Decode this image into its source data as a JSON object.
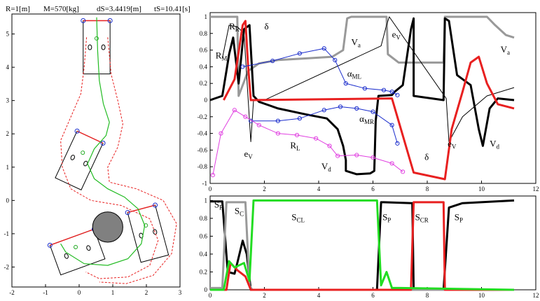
{
  "header": {
    "r": "R=1[m]",
    "m": "M=570[kg]",
    "ds": "dS=3.4419[m]",
    "ts": "tS=10.41[s]"
  },
  "chart_data": [
    {
      "type": "scatter",
      "description_key": "trajectory",
      "xlim": [
        -2,
        3
      ],
      "ylim": [
        -2.6,
        5.6
      ],
      "xticks": [
        "-2",
        "-1",
        "0",
        "1",
        "2",
        "3"
      ],
      "yticks": [
        "-2",
        "-1",
        "0",
        "1",
        "2",
        "3",
        "4",
        "5"
      ],
      "obstacle": {
        "x": 0.85,
        "y": -0.8,
        "r": 0.45
      },
      "green_path": [
        [
          0.52,
          5.5
        ],
        [
          0.55,
          4.5
        ],
        [
          0.6,
          3.6
        ],
        [
          0.72,
          2.9
        ],
        [
          0.9,
          2.35
        ],
        [
          0.8,
          1.95
        ],
        [
          0.45,
          1.55
        ],
        [
          0.25,
          1.1
        ],
        [
          0.45,
          0.65
        ],
        [
          0.85,
          0.35
        ],
        [
          1.35,
          0.1
        ],
        [
          1.75,
          -0.25
        ],
        [
          1.95,
          -0.75
        ],
        [
          1.85,
          -1.3
        ],
        [
          1.45,
          -1.75
        ],
        [
          0.85,
          -1.95
        ],
        [
          0.15,
          -1.9
        ],
        [
          -0.4,
          -1.55
        ],
        [
          -0.55,
          -1.3
        ]
      ],
      "red_path_outer": [
        [
          0.22,
          4.9
        ],
        [
          0.15,
          4.0
        ],
        [
          0.05,
          3.2
        ],
        [
          -0.25,
          2.5
        ],
        [
          -0.55,
          1.8
        ],
        [
          -0.5,
          1.0
        ],
        [
          -0.25,
          0.35
        ],
        [
          0.35,
          0.0
        ],
        [
          1.25,
          -0.15
        ],
        [
          2.1,
          -0.55
        ],
        [
          2.35,
          -1.2
        ],
        [
          2.1,
          -1.95
        ],
        [
          1.45,
          -2.3
        ],
        [
          0.6,
          -2.35
        ],
        [
          0.2,
          -2.15
        ]
      ],
      "red_path_inner": [
        [
          0.85,
          4.9
        ],
        [
          0.95,
          3.8
        ],
        [
          1.15,
          3.0
        ],
        [
          1.3,
          2.3
        ],
        [
          1.15,
          1.6
        ],
        [
          0.85,
          1.0
        ],
        [
          0.9,
          0.55
        ],
        [
          1.7,
          0.35
        ],
        [
          2.5,
          0.0
        ],
        [
          2.9,
          -0.7
        ],
        [
          2.75,
          -1.6
        ],
        [
          2.2,
          -2.25
        ],
        [
          1.4,
          -2.5
        ],
        [
          0.6,
          -2.45
        ]
      ],
      "bodies": [
        {
          "cx": 0.52,
          "cy": 4.6,
          "w": 0.8,
          "h": 1.6,
          "angle": 0
        },
        {
          "cx": 0.0,
          "cy": 1.2,
          "w": 0.85,
          "h": 1.55,
          "angle": 25
        },
        {
          "cx": 2.05,
          "cy": -1.0,
          "w": 0.85,
          "h": 1.55,
          "angle": -15
        },
        {
          "cx": -0.05,
          "cy": -1.55,
          "w": 1.4,
          "h": 0.95,
          "angle": -20
        }
      ]
    },
    {
      "type": "line",
      "description_key": "upper-plot",
      "xlim": [
        0,
        12
      ],
      "ylim": [
        -1,
        1.05
      ],
      "xticks": [
        "0",
        "2",
        "4",
        "6",
        "8",
        "10",
        "12"
      ],
      "yticks": [
        "-1",
        "-0.8",
        "-0.6",
        "-0.4",
        "-0.2",
        "0",
        "0.2",
        "0.4",
        "0.6",
        "0.8",
        "1"
      ],
      "annotations": [
        {
          "text": "R",
          "sub": "R",
          "x": 0.7,
          "y": 0.85
        },
        {
          "text": "δ",
          "sub": "",
          "x": 2.0,
          "y": 0.85
        },
        {
          "text": "R",
          "sub": "M",
          "x": 0.2,
          "y": 0.5
        },
        {
          "text": "V",
          "sub": "a",
          "x": 5.2,
          "y": 0.66
        },
        {
          "text": "e",
          "sub": "V",
          "x": 6.7,
          "y": 0.75
        },
        {
          "text": "V",
          "sub": "a",
          "x": 10.7,
          "y": 0.57
        },
        {
          "text": "α",
          "sub": "ML",
          "x": 5.05,
          "y": 0.28
        },
        {
          "text": "α",
          "sub": "MR",
          "x": 5.5,
          "y": -0.26
        },
        {
          "text": "e",
          "sub": "V",
          "x": 1.25,
          "y": -0.68
        },
        {
          "text": "R",
          "sub": "L",
          "x": 2.95,
          "y": -0.58
        },
        {
          "text": "V",
          "sub": "d",
          "x": 4.1,
          "y": -0.83
        },
        {
          "text": "δ",
          "sub": "",
          "x": 7.9,
          "y": -0.72
        },
        {
          "text": "e",
          "sub": "V",
          "x": 8.75,
          "y": -0.56
        },
        {
          "text": "V",
          "sub": "d",
          "x": 10.3,
          "y": -0.56
        }
      ],
      "series": [
        {
          "color": "#999999",
          "width": 3,
          "points": [
            [
              0,
              1
            ],
            [
              1.0,
              1
            ],
            [
              1.05,
              0.05
            ],
            [
              1.4,
              0.35
            ],
            [
              1.8,
              0.44
            ],
            [
              2.5,
              0.48
            ],
            [
              3.5,
              0.5
            ],
            [
              4.5,
              0.52
            ],
            [
              4.9,
              0.6
            ],
            [
              5.05,
              0.98
            ],
            [
              5.2,
              1
            ],
            [
              6.5,
              1
            ],
            [
              6.55,
              0.55
            ],
            [
              6.95,
              0.45
            ],
            [
              8.6,
              0.45
            ],
            [
              8.65,
              1
            ],
            [
              10.2,
              1
            ],
            [
              10.5,
              0.9
            ],
            [
              10.9,
              0.78
            ],
            [
              11.2,
              0.75
            ]
          ]
        },
        {
          "color": "#000000",
          "width": 3,
          "points": [
            [
              0,
              0
            ],
            [
              0.45,
              0.05
            ],
            [
              0.6,
              0.35
            ],
            [
              0.7,
              0.55
            ],
            [
              0.85,
              0.75
            ],
            [
              1.05,
              0.2
            ],
            [
              1.25,
              0.85
            ],
            [
              1.45,
              0.9
            ],
            [
              1.6,
              0.05
            ],
            [
              1.8,
              -0.02
            ],
            [
              2.5,
              -0.1
            ],
            [
              3.5,
              -0.17
            ],
            [
              4.3,
              -0.22
            ],
            [
              4.7,
              -0.35
            ],
            [
              4.9,
              -0.55
            ],
            [
              5.0,
              -0.72
            ],
            [
              5.0,
              -0.85
            ],
            [
              5.4,
              -0.89
            ],
            [
              5.9,
              -0.88
            ],
            [
              6.05,
              -0.85
            ],
            [
              6.1,
              -0.25
            ],
            [
              6.2,
              0.05
            ],
            [
              6.7,
              0.06
            ],
            [
              6.8,
              0.1
            ],
            [
              7.1,
              0.18
            ],
            [
              7.4,
              0.85
            ],
            [
              7.5,
              0.98
            ],
            [
              7.5,
              0.05
            ],
            [
              8.6,
              0.0
            ],
            [
              8.65,
              0.98
            ],
            [
              8.8,
              0.95
            ],
            [
              9.1,
              0.3
            ],
            [
              9.6,
              0.18
            ],
            [
              9.9,
              -0.35
            ],
            [
              10.05,
              -0.55
            ],
            [
              10.3,
              -0.1
            ],
            [
              10.6,
              0.02
            ],
            [
              11.2,
              0.0
            ]
          ]
        },
        {
          "color": "#000000",
          "width": 1,
          "points": [
            [
              0.45,
              0.5
            ],
            [
              0.7,
              0.9
            ],
            [
              1.0,
              0.88
            ],
            [
              1.25,
              0.8
            ],
            [
              1.5,
              -0.5
            ],
            [
              1.6,
              0.0
            ],
            [
              2.0,
              0.0
            ],
            [
              6.3,
              0.65
            ],
            [
              6.5,
              0.9
            ],
            [
              6.6,
              1.0
            ],
            [
              8.7,
              0.02
            ],
            [
              8.8,
              -0.5
            ],
            [
              9.3,
              -0.2
            ],
            [
              10.2,
              0.05
            ],
            [
              11.2,
              0.15
            ]
          ]
        },
        {
          "color": "#e82020",
          "width": 3,
          "points": [
            [
              0.5,
              0
            ],
            [
              0.9,
              0.25
            ],
            [
              1.2,
              0.9
            ],
            [
              1.3,
              0.95
            ],
            [
              1.4,
              0.4
            ],
            [
              1.5,
              0.0
            ],
            [
              6.7,
              0.02
            ],
            [
              7.5,
              -0.87
            ],
            [
              8.65,
              -0.95
            ],
            [
              8.9,
              -0.35
            ],
            [
              9.3,
              0.1
            ],
            [
              9.6,
              0.45
            ],
            [
              9.9,
              0.52
            ],
            [
              10.2,
              0.2
            ],
            [
              10.6,
              -0.05
            ],
            [
              11.2,
              -0.1
            ]
          ]
        },
        {
          "color": "#1a2ccc",
          "width": 1,
          "markers": true,
          "points": [
            [
              1.2,
              0.4
            ],
            [
              2.3,
              0.47
            ],
            [
              3.3,
              0.56
            ],
            [
              4.2,
              0.62
            ],
            [
              4.6,
              0.48
            ],
            [
              5.0,
              0.2
            ],
            [
              5.7,
              0.14
            ],
            [
              6.4,
              0.12
            ],
            [
              6.7,
              0.1
            ],
            [
              6.9,
              0.06
            ]
          ]
        },
        {
          "color": "#1a2ccc",
          "width": 1,
          "markers": true,
          "points": [
            [
              1.5,
              -0.25
            ],
            [
              2.5,
              -0.25
            ],
            [
              3.3,
              -0.22
            ],
            [
              4.2,
              -0.12
            ],
            [
              4.8,
              -0.08
            ],
            [
              5.4,
              -0.1
            ],
            [
              6.0,
              -0.14
            ],
            [
              6.7,
              -0.3
            ],
            [
              6.9,
              -0.52
            ]
          ]
        },
        {
          "color": "#e040e0",
          "width": 1,
          "markers": true,
          "points": [
            [
              0.1,
              -0.9
            ],
            [
              0.4,
              -0.4
            ],
            [
              0.9,
              -0.12
            ],
            [
              1.3,
              -0.2
            ],
            [
              1.8,
              -0.3
            ],
            [
              2.5,
              -0.4
            ],
            [
              3.2,
              -0.42
            ],
            [
              3.9,
              -0.46
            ],
            [
              4.4,
              -0.55
            ],
            [
              4.7,
              -0.67
            ],
            [
              5.4,
              -0.66
            ],
            [
              6.0,
              -0.69
            ],
            [
              6.7,
              -0.76
            ],
            [
              7.1,
              -0.86
            ]
          ]
        }
      ]
    },
    {
      "type": "line",
      "description_key": "lower-plot",
      "xlim": [
        0,
        12
      ],
      "ylim": [
        0,
        1.05
      ],
      "xticks": [
        "0",
        "2",
        "4",
        "6",
        "8",
        "10",
        "12"
      ],
      "yticks": [
        "0",
        "0.2",
        "0.4",
        "0.6",
        "0.8",
        "1"
      ],
      "annotations": [
        {
          "text": "S",
          "sub": "P",
          "x": 0.15,
          "y": 0.92
        },
        {
          "text": "S",
          "sub": "C",
          "x": 0.9,
          "y": 0.85
        },
        {
          "text": "S",
          "sub": "CL",
          "x": 3.0,
          "y": 0.78
        },
        {
          "text": "S",
          "sub": "P",
          "x": 6.35,
          "y": 0.78
        },
        {
          "text": "S",
          "sub": "CR",
          "x": 7.55,
          "y": 0.78
        },
        {
          "text": "S",
          "sub": "P",
          "x": 9.0,
          "y": 0.78
        }
      ],
      "series": [
        {
          "color": "#000000",
          "width": 3,
          "points": [
            [
              0,
              0.99
            ],
            [
              0.45,
              0.99
            ],
            [
              0.65,
              0.2
            ],
            [
              0.9,
              0.18
            ],
            [
              1.0,
              0.3
            ],
            [
              1.2,
              0.55
            ],
            [
              1.35,
              0.4
            ],
            [
              1.5,
              0.0
            ],
            [
              6.15,
              0.0
            ],
            [
              6.3,
              0.98
            ],
            [
              6.4,
              0.98
            ],
            [
              7.45,
              0.97
            ],
            [
              7.5,
              0.0
            ],
            [
              8.6,
              0.0
            ],
            [
              8.8,
              0.92
            ],
            [
              9.3,
              0.97
            ],
            [
              11.2,
              1.0
            ]
          ]
        },
        {
          "color": "#999999",
          "width": 3,
          "points": [
            [
              0,
              0.02
            ],
            [
              0.45,
              0.02
            ],
            [
              0.6,
              0.98
            ],
            [
              1.3,
              0.98
            ],
            [
              1.45,
              0.05
            ],
            [
              1.55,
              0.0
            ],
            [
              11.2,
              0.0
            ]
          ]
        },
        {
          "color": "#e82020",
          "width": 3,
          "points": [
            [
              0,
              0
            ],
            [
              0.6,
              0.0
            ],
            [
              0.75,
              0.3
            ],
            [
              1.0,
              0.22
            ],
            [
              1.3,
              0.15
            ],
            [
              1.5,
              0.0
            ],
            [
              7.4,
              0.0
            ],
            [
              7.5,
              0.98
            ],
            [
              8.6,
              0.98
            ],
            [
              8.65,
              0.0
            ],
            [
              11.2,
              0.0
            ]
          ]
        },
        {
          "color": "#22dd22",
          "width": 3,
          "points": [
            [
              0,
              0
            ],
            [
              0.5,
              0.0
            ],
            [
              0.7,
              0.32
            ],
            [
              0.9,
              0.25
            ],
            [
              1.25,
              0.3
            ],
            [
              1.45,
              0.1
            ],
            [
              1.6,
              1.0
            ],
            [
              6.15,
              1.0
            ],
            [
              6.3,
              0.05
            ],
            [
              6.5,
              0.2
            ],
            [
              6.7,
              0.02
            ],
            [
              7.0,
              0.02
            ],
            [
              11.2,
              0.0
            ]
          ]
        }
      ]
    }
  ]
}
